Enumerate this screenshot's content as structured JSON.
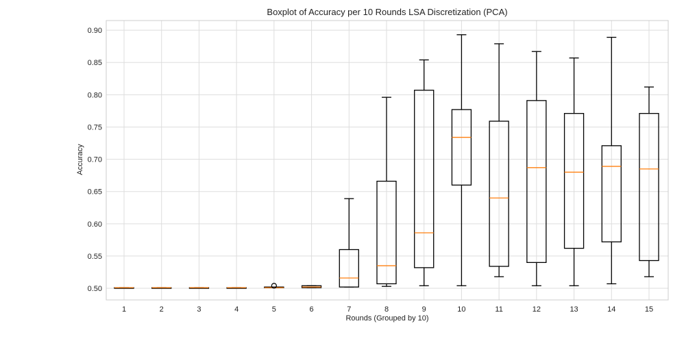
{
  "chart_data": {
    "type": "boxplot",
    "title": "Boxplot of Accuracy per 10 Rounds LSA Discretization (PCA)",
    "xlabel": "Rounds (Grouped by 10)",
    "ylabel": "Accuracy",
    "ylim": [
      0.482,
      0.915
    ],
    "yticks": [
      "0.50",
      "0.55",
      "0.60",
      "0.65",
      "0.70",
      "0.75",
      "0.80",
      "0.85",
      "0.90"
    ],
    "grid": true,
    "colors": {
      "box": "#000000",
      "median": "#ff7f0e",
      "grid": "#dddddd"
    },
    "categories": [
      "1",
      "2",
      "3",
      "4",
      "5",
      "6",
      "7",
      "8",
      "9",
      "10",
      "11",
      "12",
      "13",
      "14",
      "15"
    ],
    "boxes": [
      {
        "whislo": 0.501,
        "q1": 0.501,
        "med": 0.501,
        "q3": 0.501,
        "whishi": 0.501,
        "fliers": []
      },
      {
        "whislo": 0.501,
        "q1": 0.501,
        "med": 0.501,
        "q3": 0.501,
        "whishi": 0.501,
        "fliers": []
      },
      {
        "whislo": 0.501,
        "q1": 0.501,
        "med": 0.501,
        "q3": 0.501,
        "whishi": 0.501,
        "fliers": []
      },
      {
        "whislo": 0.501,
        "q1": 0.501,
        "med": 0.501,
        "q3": 0.501,
        "whishi": 0.501,
        "fliers": []
      },
      {
        "whislo": 0.501,
        "q1": 0.501,
        "med": 0.501,
        "q3": 0.502,
        "whishi": 0.502,
        "fliers": [
          0.504
        ]
      },
      {
        "whislo": 0.501,
        "q1": 0.501,
        "med": 0.502,
        "q3": 0.504,
        "whishi": 0.504,
        "fliers": []
      },
      {
        "whislo": 0.502,
        "q1": 0.502,
        "med": 0.516,
        "q3": 0.56,
        "whishi": 0.639,
        "fliers": []
      },
      {
        "whislo": 0.503,
        "q1": 0.507,
        "med": 0.535,
        "q3": 0.666,
        "whishi": 0.796,
        "fliers": []
      },
      {
        "whislo": 0.504,
        "q1": 0.532,
        "med": 0.586,
        "q3": 0.807,
        "whishi": 0.854,
        "fliers": []
      },
      {
        "whislo": 0.504,
        "q1": 0.66,
        "med": 0.734,
        "q3": 0.777,
        "whishi": 0.893,
        "fliers": []
      },
      {
        "whislo": 0.518,
        "q1": 0.534,
        "med": 0.64,
        "q3": 0.759,
        "whishi": 0.879,
        "fliers": []
      },
      {
        "whislo": 0.504,
        "q1": 0.54,
        "med": 0.687,
        "q3": 0.791,
        "whishi": 0.867,
        "fliers": []
      },
      {
        "whislo": 0.504,
        "q1": 0.562,
        "med": 0.68,
        "q3": 0.771,
        "whishi": 0.857,
        "fliers": []
      },
      {
        "whislo": 0.507,
        "q1": 0.572,
        "med": 0.689,
        "q3": 0.721,
        "whishi": 0.889,
        "fliers": []
      },
      {
        "whislo": 0.518,
        "q1": 0.543,
        "med": 0.685,
        "q3": 0.771,
        "whishi": 0.812,
        "fliers": []
      }
    ]
  }
}
